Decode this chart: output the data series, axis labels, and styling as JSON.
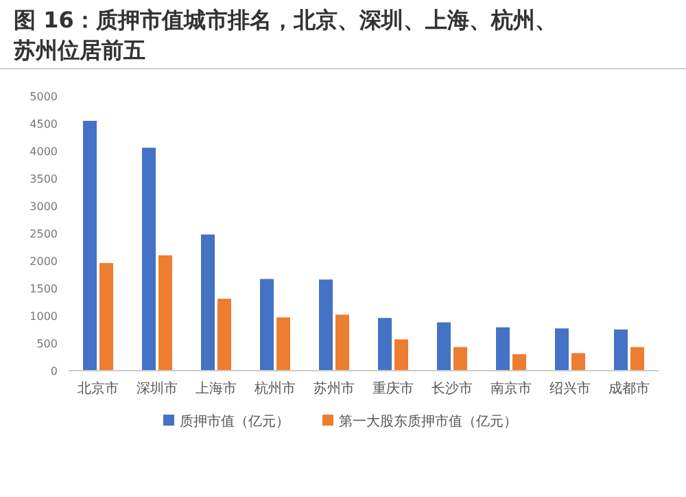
{
  "chart_data": {
    "type": "bar",
    "title": "图 16：质押市值城市排名，北京、深圳、上海、杭州、苏州位居前五",
    "categories": [
      "北京市",
      "深圳市",
      "上海市",
      "杭州市",
      "苏州市",
      "重庆市",
      "长沙市",
      "南京市",
      "绍兴市",
      "成都市"
    ],
    "series": [
      {
        "name": "质押市值（亿元）",
        "color": "#4472c4",
        "values": [
          4550,
          4060,
          2480,
          1670,
          1660,
          960,
          880,
          790,
          770,
          750
        ]
      },
      {
        "name": "第一大股东质押市值（亿元）",
        "color": "#ed7d31",
        "values": [
          1960,
          2100,
          1310,
          970,
          1020,
          570,
          430,
          300,
          320,
          430
        ]
      }
    ],
    "ylim": [
      0,
      5000
    ],
    "yticks": [
      0,
      500,
      1000,
      1500,
      2000,
      2500,
      3000,
      3500,
      4000,
      4500,
      5000
    ],
    "legend": "bottom"
  }
}
